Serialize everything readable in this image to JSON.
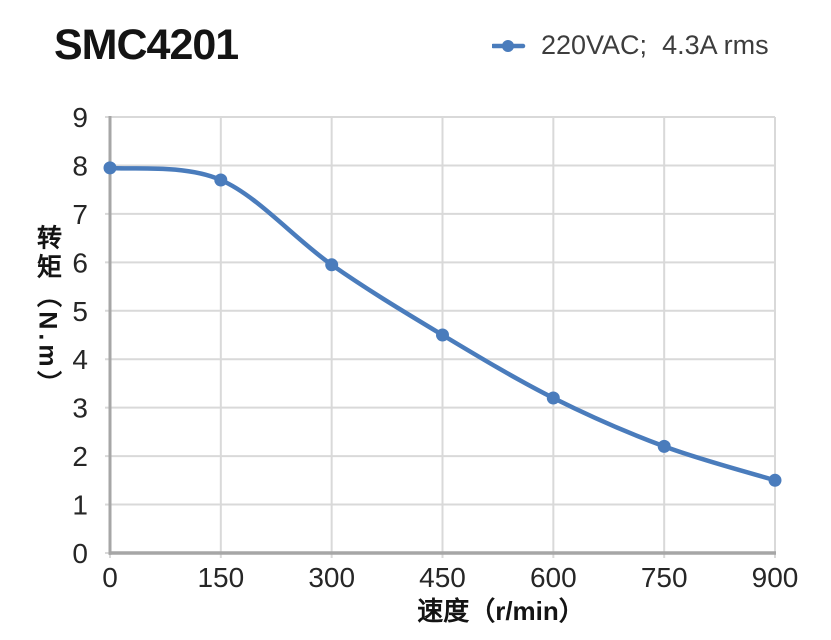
{
  "page": {
    "title": "SMC4201"
  },
  "legend": {
    "label": "220VAC;  4.3A rms"
  },
  "chart_data": {
    "type": "line",
    "title": "SMC4201",
    "x": [
      0,
      150,
      300,
      450,
      600,
      750,
      900
    ],
    "series": [
      {
        "name": "220VAC; 4.3A rms",
        "values": [
          7.95,
          7.7,
          5.95,
          4.5,
          3.2,
          2.2,
          1.5
        ]
      }
    ],
    "xlabel": "速度（r/min）",
    "ylabel": "转矩（N.m）",
    "xlim": [
      0,
      900
    ],
    "ylim": [
      0,
      9
    ],
    "xticks": [
      0,
      150,
      300,
      450,
      600,
      750,
      900
    ],
    "yticks": [
      0,
      1,
      2,
      3,
      4,
      5,
      6,
      7,
      8,
      9
    ],
    "grid": true,
    "legend_position": "top-right",
    "line_color": "#4A7CBC",
    "marker": "circle",
    "grid_color": "#D9D9D9",
    "axis_color": "#A6A6A6",
    "tick_label_color": "#262626"
  }
}
